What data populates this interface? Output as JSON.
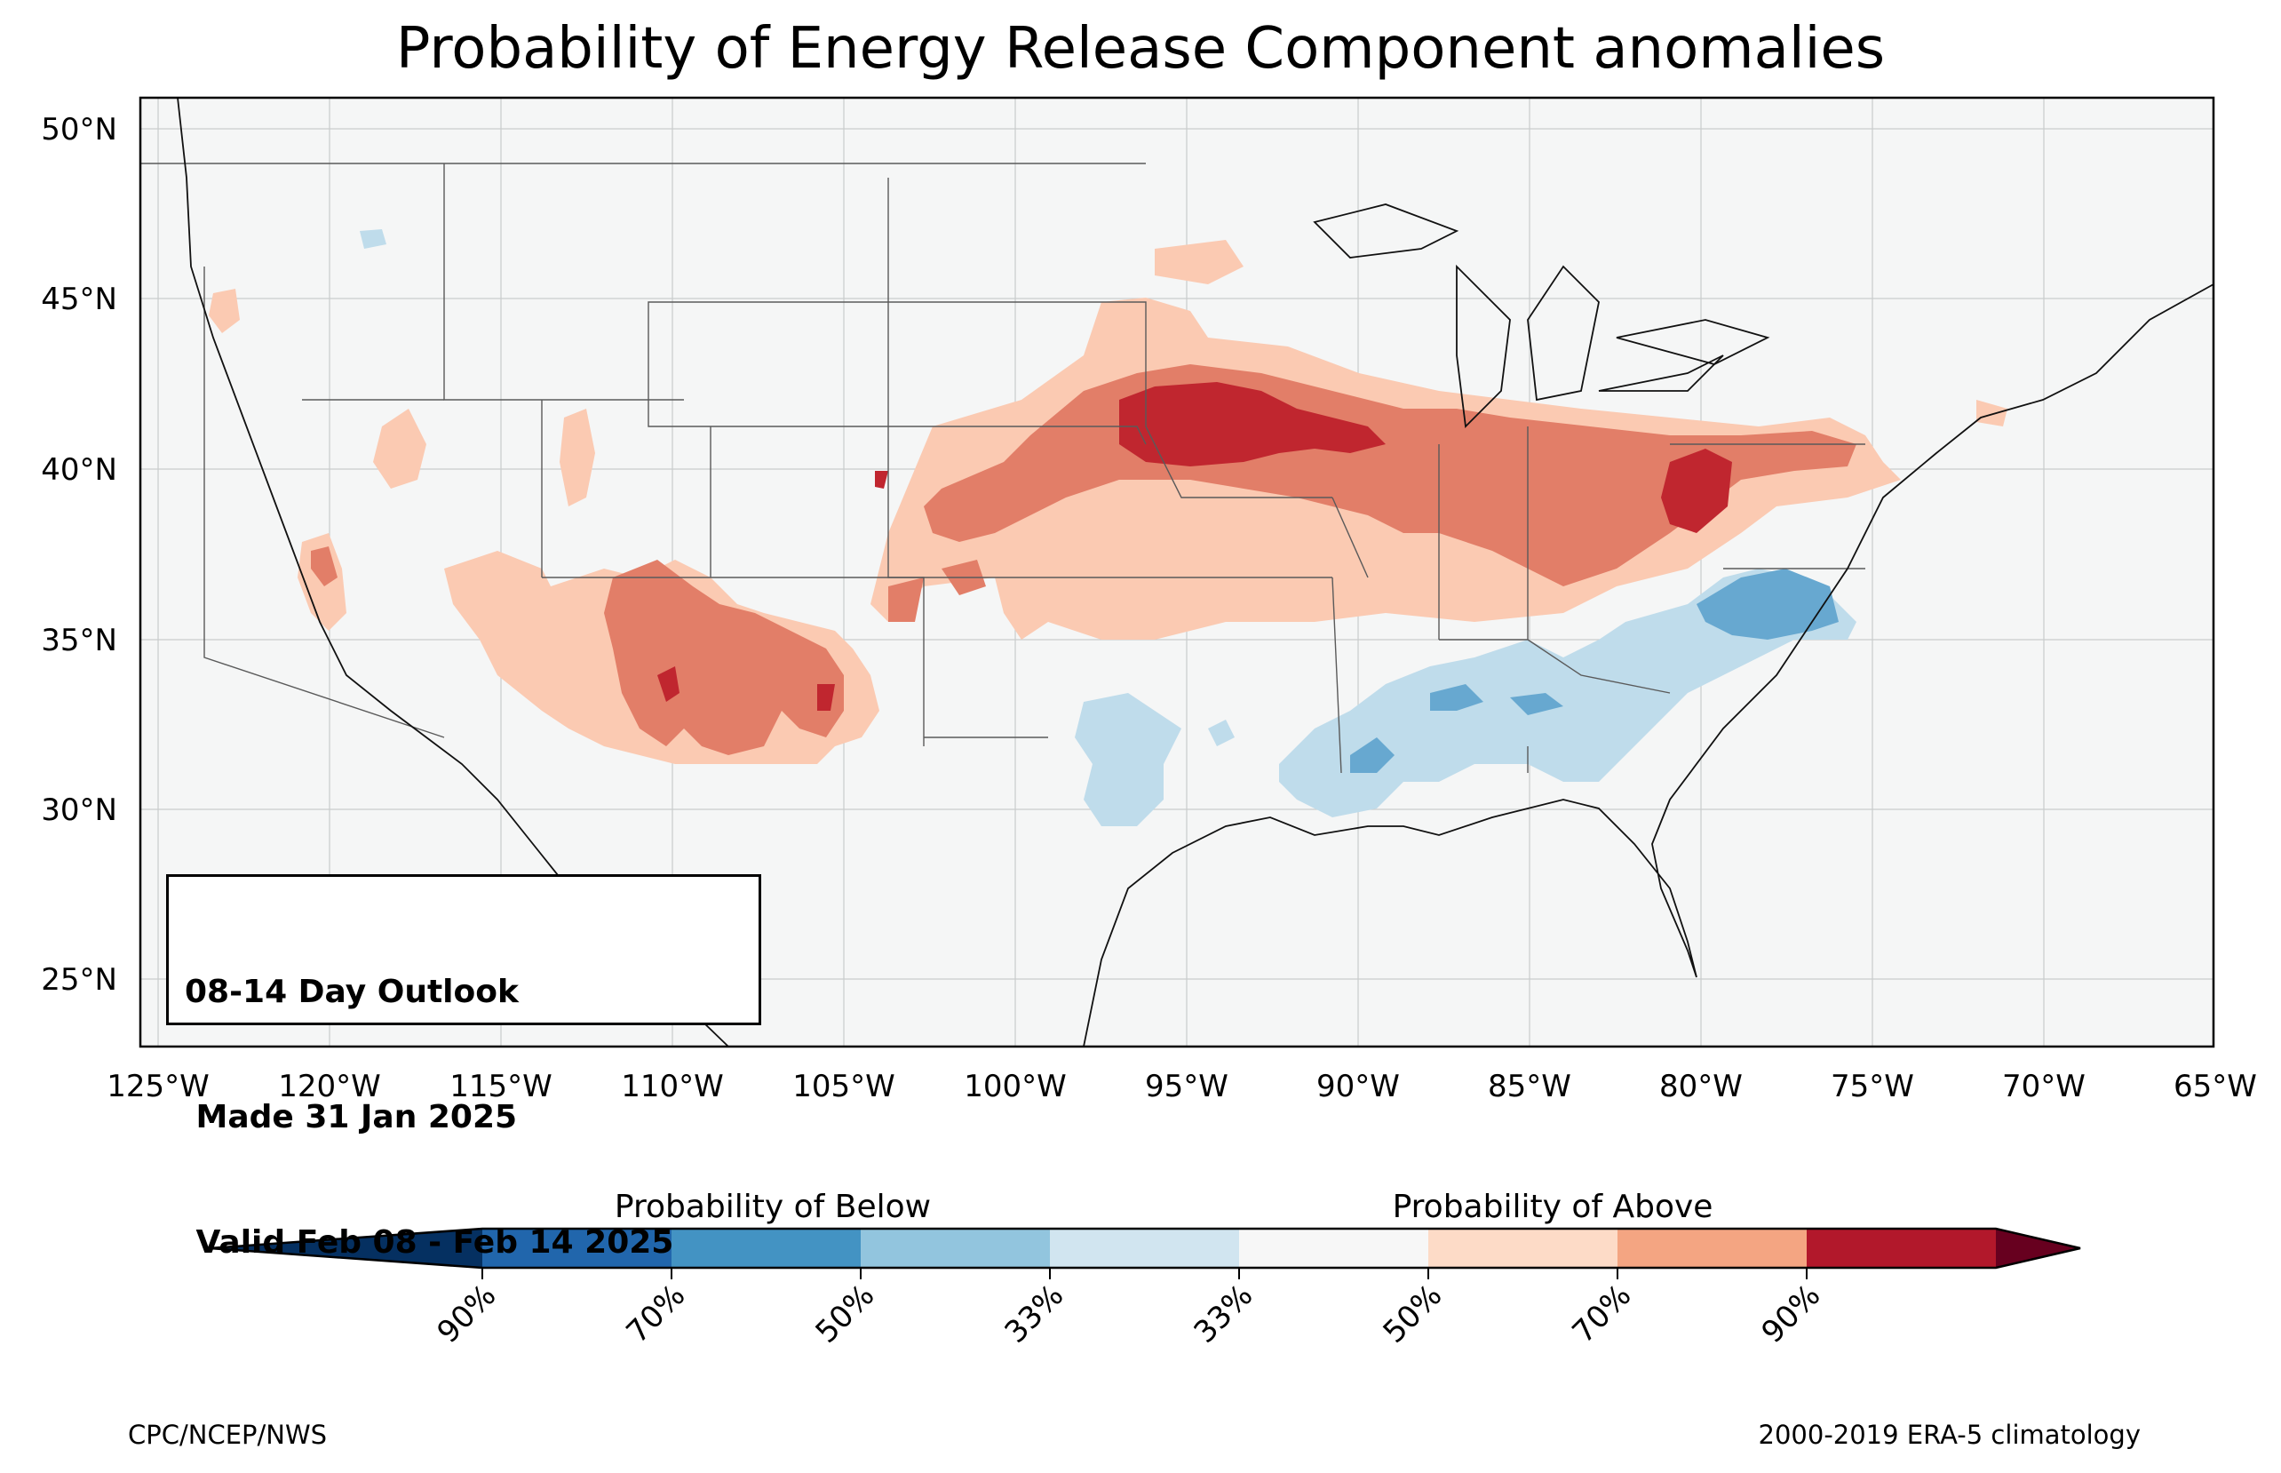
{
  "title": "Probability of Energy Release Component anomalies",
  "map": {
    "lat_labels": [
      "50°N",
      "45°N",
      "40°N",
      "35°N",
      "30°N",
      "25°N"
    ],
    "lon_labels": [
      "125°W",
      "120°W",
      "115°W",
      "110°W",
      "105°W",
      "100°W",
      "95°W",
      "90°W",
      "85°W",
      "80°W",
      "75°W",
      "70°W",
      "65°W"
    ],
    "extent": {
      "lon": [
        -125.5,
        -65
      ],
      "lat": [
        23,
        51
      ]
    },
    "colors": {
      "ocean": "#f5f6f6",
      "below_33": "#bfdceb",
      "below_50": "#67a8d0",
      "above_33": "#fbcab2",
      "above_50": "#e27e68",
      "above_70": "#c0262f"
    }
  },
  "infobox": {
    "line1": "08-14 Day Outlook",
    "line2": " Made 31 Jan 2025",
    "line3": " Valid Feb 08 - Feb 14 2025"
  },
  "colorbar": {
    "below_label": "Probability of Below",
    "above_label": "Probability of Above",
    "ticks": [
      "90%",
      "70%",
      "50%",
      "33%",
      "33%",
      "50%",
      "70%",
      "90%"
    ],
    "segment_colors": [
      "#053061",
      "#2166ac",
      "#4393c3",
      "#92c5de",
      "#d1e5f0",
      "#f7f7f7",
      "#fddbc7",
      "#f4a582",
      "#d6604d",
      "#b2182b",
      "#67001f"
    ]
  },
  "footer": {
    "left": "CPC/NCEP/NWS",
    "right": "2000-2019 ERA-5 climatology"
  }
}
